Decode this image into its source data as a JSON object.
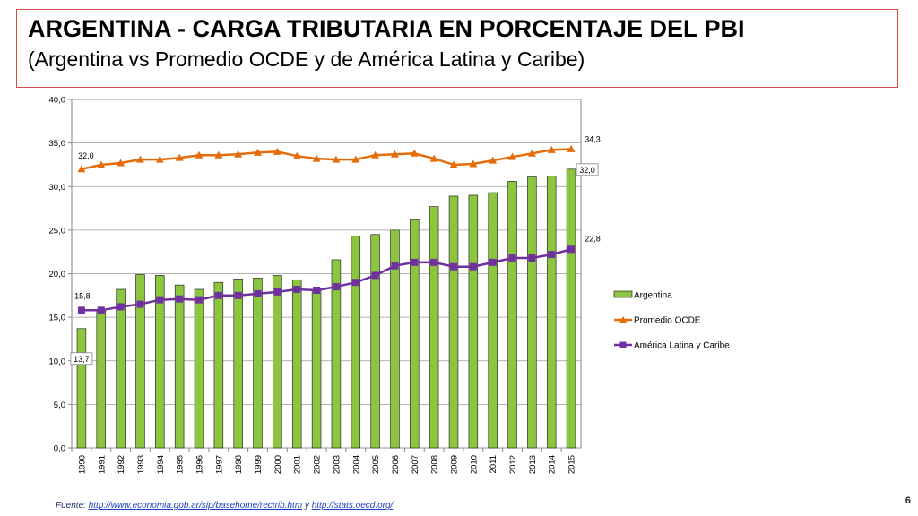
{
  "slide": {
    "title": "ARGENTINA - CARGA TRIBUTARIA EN PORCENTAJE DEL PBI",
    "subtitle": "(Argentina vs Promedio OCDE y de América Latina y Caribe)",
    "source_prefix": "Fuente: ",
    "source_link1": "http://www.economia.gob.ar/sip/basehome/rectrib.htm",
    "source_mid": " y ",
    "source_link2": "http://stats.oecd.org/",
    "page_number": "6"
  },
  "chart_data": {
    "type": "bar",
    "categories": [
      "1990",
      "1991",
      "1992",
      "1993",
      "1994",
      "1995",
      "1996",
      "1997",
      "1998",
      "1999",
      "2000",
      "2001",
      "2002",
      "2003",
      "2004",
      "2005",
      "2006",
      "2007",
      "2008",
      "2009",
      "2010",
      "2011",
      "2012",
      "2013",
      "2014",
      "2015"
    ],
    "ylim": [
      0,
      40
    ],
    "yticks": [
      "0,0",
      "5,0",
      "10,0",
      "15,0",
      "20,0",
      "25,0",
      "30,0",
      "35,0",
      "40,0"
    ],
    "grid": true,
    "legend_position": "right",
    "series": [
      {
        "name": "Argentina",
        "kind": "bar",
        "color": "#8cc63f",
        "values": [
          13.7,
          15.7,
          18.2,
          19.9,
          19.8,
          18.7,
          18.2,
          19.0,
          19.4,
          19.5,
          19.8,
          19.3,
          18.2,
          21.6,
          24.3,
          24.5,
          25.0,
          26.2,
          27.7,
          28.9,
          29.0,
          29.3,
          30.6,
          31.1,
          31.2,
          32.0
        ]
      },
      {
        "name": "Promedio OCDE",
        "kind": "line",
        "color": "#e46c0a",
        "values": [
          32.0,
          32.5,
          32.7,
          33.1,
          33.1,
          33.3,
          33.6,
          33.6,
          33.7,
          33.9,
          34.0,
          33.5,
          33.2,
          33.1,
          33.1,
          33.6,
          33.7,
          33.8,
          33.2,
          32.5,
          32.6,
          33.0,
          33.4,
          33.8,
          34.2,
          34.3
        ]
      },
      {
        "name": "América Latina y Caribe",
        "kind": "line",
        "color": "#7030a0",
        "values": [
          15.8,
          15.8,
          16.2,
          16.5,
          17.0,
          17.1,
          17.0,
          17.5,
          17.5,
          17.7,
          17.9,
          18.2,
          18.1,
          18.5,
          19.0,
          19.8,
          20.9,
          21.3,
          21.3,
          20.8,
          20.8,
          21.3,
          21.8,
          21.8,
          22.2,
          22.8
        ]
      }
    ],
    "annotations": [
      {
        "series": "Argentina",
        "index": 0,
        "text": "13,7",
        "boxed": true
      },
      {
        "series": "Argentina",
        "index": 25,
        "text": "32,0",
        "boxed": true
      },
      {
        "series": "Promedio OCDE",
        "index": 0,
        "text": "32,0",
        "boxed": false
      },
      {
        "series": "Promedio OCDE",
        "index": 25,
        "text": "34,3",
        "boxed": false
      },
      {
        "series": "América Latina y Caribe",
        "index": 0,
        "text": "15,8",
        "boxed": false
      },
      {
        "series": "América Latina y Caribe",
        "index": 25,
        "text": "22,8",
        "boxed": false
      }
    ]
  }
}
